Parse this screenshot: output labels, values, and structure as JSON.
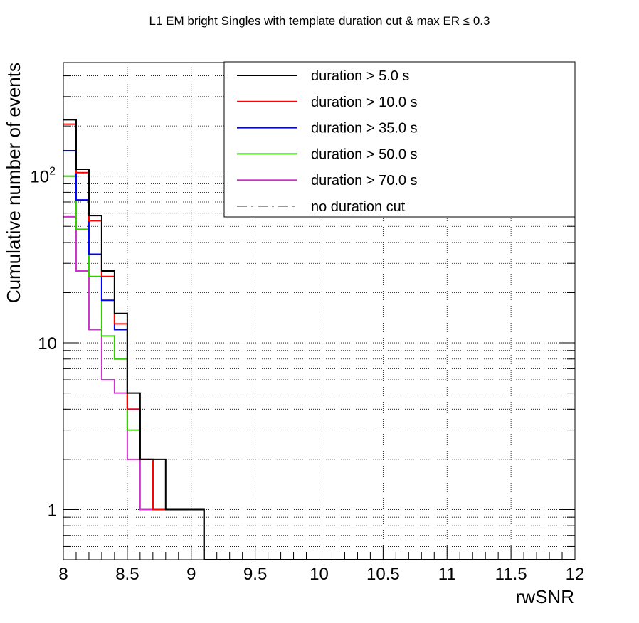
{
  "chart_data": {
    "type": "line",
    "title": "L1 EM bright Singles with template duration cut & max ER ≤ 0.3",
    "xlabel": "rwSNR",
    "ylabel": "Cumulative number of events",
    "xlim": [
      8,
      12
    ],
    "ylim": [
      0.5,
      480
    ],
    "yscale": "log",
    "grid": true,
    "legend_position": "top-right",
    "x_ticks": [
      "8",
      "8.5",
      "9",
      "9.5",
      "10",
      "10.5",
      "11",
      "11.5",
      "12"
    ],
    "y_ticks": [
      {
        "value": 1,
        "label": "1",
        "sup": ""
      },
      {
        "value": 10,
        "label": "10",
        "sup": ""
      },
      {
        "value": 100,
        "label": "10",
        "sup": "2"
      }
    ],
    "bin_edges": [
      8.0,
      8.1,
      8.2,
      8.3,
      8.4,
      8.5,
      8.6,
      8.7,
      8.8,
      8.9,
      9.0,
      9.1,
      9.2,
      9.3,
      9.4,
      9.5,
      9.6,
      9.7,
      9.8,
      9.9,
      10.0,
      10.1,
      10.2,
      10.3,
      10.4,
      10.5,
      10.6,
      10.7,
      10.8,
      10.9,
      11.0,
      11.1,
      11.2,
      11.3,
      11.4,
      11.5,
      11.6,
      11.7,
      11.8,
      11.9,
      12.0
    ],
    "series": [
      {
        "name": "duration > 5.0 s",
        "color": "#000000",
        "dash": "",
        "values": [
          218,
          110,
          58,
          27,
          15,
          5,
          2,
          2,
          1,
          1,
          1,
          0,
          0,
          0,
          0,
          0,
          0,
          0,
          0,
          0,
          0,
          0,
          0,
          0,
          0,
          0,
          0,
          0,
          0,
          0,
          0,
          0,
          0,
          0,
          0,
          0,
          0,
          0,
          0,
          0
        ]
      },
      {
        "name": "duration > 10.0 s",
        "color": "#ff0000",
        "dash": "",
        "values": [
          205,
          105,
          54,
          25,
          13,
          4,
          2,
          1,
          1,
          1,
          1,
          0,
          0,
          0,
          0,
          0,
          0,
          0,
          0,
          0,
          0,
          0,
          0,
          0,
          0,
          0,
          0,
          0,
          0,
          0,
          0,
          0,
          0,
          0,
          0,
          0,
          0,
          0,
          0,
          0
        ]
      },
      {
        "name": "duration > 35.0 s",
        "color": "#0000ff",
        "dash": "",
        "values": [
          142,
          72,
          34,
          18,
          12,
          4,
          2,
          1,
          1,
          1,
          1,
          0,
          0,
          0,
          0,
          0,
          0,
          0,
          0,
          0,
          0,
          0,
          0,
          0,
          0,
          0,
          0,
          0,
          0,
          0,
          0,
          0,
          0,
          0,
          0,
          0,
          0,
          0,
          0,
          0
        ]
      },
      {
        "name": "duration > 50.0 s",
        "color": "#33cc00",
        "dash": "",
        "values": [
          100,
          48,
          25,
          11,
          8,
          3,
          2,
          1,
          1,
          1,
          1,
          0,
          0,
          0,
          0,
          0,
          0,
          0,
          0,
          0,
          0,
          0,
          0,
          0,
          0,
          0,
          0,
          0,
          0,
          0,
          0,
          0,
          0,
          0,
          0,
          0,
          0,
          0,
          0,
          0
        ]
      },
      {
        "name": "duration > 70.0 s",
        "color": "#cc33cc",
        "dash": "",
        "values": [
          57,
          27,
          12,
          6,
          5,
          2,
          1,
          1,
          1,
          1,
          1,
          0,
          0,
          0,
          0,
          0,
          0,
          0,
          0,
          0,
          0,
          0,
          0,
          0,
          0,
          0,
          0,
          0,
          0,
          0,
          0,
          0,
          0,
          0,
          0,
          0,
          0,
          0,
          0,
          0
        ]
      },
      {
        "name": "no duration cut",
        "color": "#999999",
        "dash": "14,6,3,6",
        "values": []
      }
    ]
  }
}
